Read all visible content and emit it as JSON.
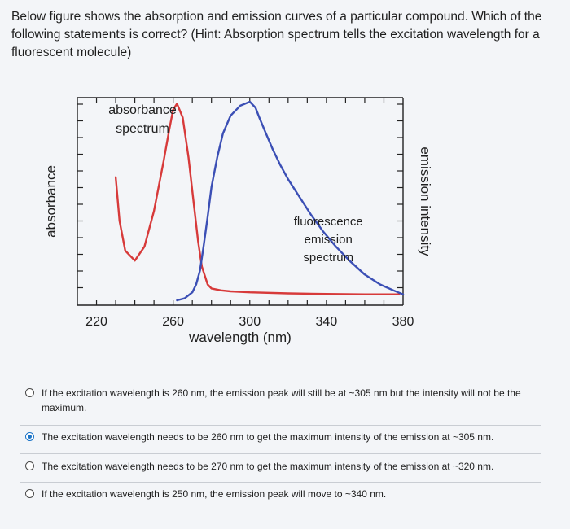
{
  "question": {
    "text": "Below figure shows the absorption and emission curves of a particular compound. Which of the following statements is correct? (Hint: Absorption spectrum tells the excitation wavelength for a fluorescent molecule)"
  },
  "chart_data": {
    "type": "line",
    "title": "",
    "xlabel": "wavelength (nm)",
    "ylabel_left": "absorbance",
    "ylabel_right": "emission intensity",
    "xlim": [
      210,
      380
    ],
    "xticks": [
      220,
      260,
      300,
      340,
      380
    ],
    "grid": false,
    "series": [
      {
        "name": "absorbance spectrum",
        "color": "#d73a3a",
        "axis": "left",
        "x": [
          230,
          232,
          235,
          240,
          245,
          250,
          255,
          258,
          260,
          262,
          265,
          268,
          270,
          273,
          275,
          278,
          280,
          285,
          290,
          300,
          320,
          340,
          360,
          378
        ],
        "y": [
          0.62,
          0.4,
          0.25,
          0.2,
          0.27,
          0.45,
          0.7,
          0.86,
          0.96,
          0.99,
          0.92,
          0.72,
          0.55,
          0.3,
          0.17,
          0.08,
          0.06,
          0.05,
          0.045,
          0.04,
          0.035,
          0.032,
          0.03,
          0.03
        ]
      },
      {
        "name": "fluorescence emission spectrum",
        "color": "#3b4fb5",
        "axis": "right",
        "x": [
          262,
          266,
          270,
          272,
          274,
          276,
          278,
          280,
          283,
          286,
          290,
          295,
          300,
          303,
          305,
          308,
          312,
          316,
          320,
          326,
          332,
          338,
          345,
          352,
          360,
          368,
          375,
          380
        ],
        "y": [
          0.0,
          0.01,
          0.04,
          0.08,
          0.15,
          0.28,
          0.42,
          0.57,
          0.72,
          0.84,
          0.93,
          0.98,
          1.0,
          0.97,
          0.92,
          0.85,
          0.76,
          0.68,
          0.61,
          0.52,
          0.43,
          0.35,
          0.27,
          0.2,
          0.13,
          0.08,
          0.05,
          0.03
        ]
      }
    ],
    "annotations": [
      {
        "text_lines": [
          "absorbance",
          "spectrum"
        ],
        "series": "absorbance spectrum"
      },
      {
        "text_lines": [
          "fluorescence",
          "emission",
          "spectrum"
        ],
        "series": "fluorescence emission spectrum"
      }
    ]
  },
  "options": [
    {
      "id": "a",
      "text": "If the excitation wavelength is 260 nm, the emission peak will still be at ~305 nm but the intensity will not be the maximum.",
      "selected": false
    },
    {
      "id": "b",
      "text": "The excitation wavelength needs to be 260 nm to get the maximum intensity of the emission at ~305 nm.",
      "selected": true
    },
    {
      "id": "c",
      "text": "The excitation wavelength needs to be 270 nm to get the maximum intensity of the emission at ~320 nm.",
      "selected": false
    },
    {
      "id": "d",
      "text": "If the excitation wavelength is 250 nm, the emission peak will move to ~340 nm.",
      "selected": false
    }
  ],
  "colors": {
    "accent": "#1a73c7",
    "absorbance": "#d73a3a",
    "emission": "#3b4fb5"
  }
}
